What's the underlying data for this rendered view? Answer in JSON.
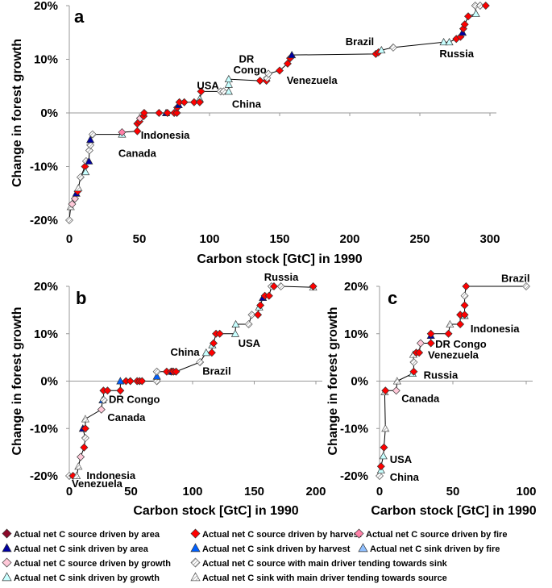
{
  "legend": [
    {
      "key": "area_source",
      "label": "Actual net C source driven by area",
      "shape": "diamond",
      "fill": "#8B0A2A"
    },
    {
      "key": "harvest_source",
      "label": "Actual net C source driven by harvest",
      "shape": "diamond",
      "fill": "#FF0000"
    },
    {
      "key": "fire_source",
      "label": "Actual net C source driven by fire",
      "shape": "diamond",
      "fill": "#FF80A8"
    },
    {
      "key": "area_sink",
      "label": "Actual net C sink driven by area",
      "shape": "triangle",
      "fill": "#0000A0"
    },
    {
      "key": "harvest_sink",
      "label": "Actual net C sink driven by harvest",
      "shape": "triangle",
      "fill": "#0060FF"
    },
    {
      "key": "fire_sink",
      "label": "Actual net C sink driven by fire",
      "shape": "triangle",
      "fill": "#90C0FF"
    },
    {
      "key": "growth_source",
      "label": "Actual net C source driven by growth",
      "shape": "diamond",
      "fill": "#FFC8D8"
    },
    {
      "key": "tend_sink",
      "label": "Actual net C source with main driver tending towards sink",
      "shape": "diamond",
      "fill": "#FFFFFF"
    },
    {
      "key": "growth_sink",
      "label": "Actual net C sink driven by growth",
      "shape": "triangle",
      "fill": "#C8FFFF"
    },
    {
      "key": "tend_source",
      "label": "Actual net C sink with main driver tending towards source",
      "shape": "triangle",
      "fill": "#FFFFFF"
    }
  ],
  "chart_data": [
    {
      "type": "scatter",
      "panel": "a",
      "xlabel": "Carbon stock [GtC] in 1990",
      "ylabel": "Change in forest growth",
      "xlim": [
        0,
        300
      ],
      "ylim": [
        -20,
        20
      ],
      "xticks": [
        "0",
        "50",
        "100",
        "150",
        "200",
        "250",
        "300"
      ],
      "yticks": [
        "-20%",
        "-10%",
        "0%",
        "10%",
        "20%"
      ],
      "connected": true,
      "points": [
        [
          0,
          -20,
          "tend_sink"
        ],
        [
          1,
          -17.5,
          "tend_source"
        ],
        [
          2,
          -17,
          "growth_source"
        ],
        [
          4,
          -16,
          "growth_source"
        ],
        [
          5,
          -15,
          "area_sink"
        ],
        [
          6,
          -14.6,
          "harvest_source"
        ],
        [
          6.5,
          -14,
          "tend_source"
        ],
        [
          8,
          -12,
          "tend_sink"
        ],
        [
          11.2,
          -10,
          "harvest_source"
        ],
        [
          11.6,
          -11,
          "growth_sink"
        ],
        [
          12,
          -9,
          "tend_sink"
        ],
        [
          14,
          -9,
          "area_sink"
        ],
        [
          14.3,
          -7,
          "tend_sink"
        ],
        [
          15,
          -6,
          "tend_sink"
        ],
        [
          15,
          -5,
          "area_sink"
        ],
        [
          16.6,
          -4,
          "tend_sink"
        ],
        [
          37.6,
          -4,
          "growth_sink"
        ],
        [
          37.6,
          -3.6,
          "fire_source"
        ],
        [
          48.5,
          -3.4,
          "harvest_source"
        ],
        [
          48.5,
          -2,
          "harvest_source"
        ],
        [
          50,
          -1.6,
          "harvest_source"
        ],
        [
          50.5,
          -1,
          "growth_source"
        ],
        [
          53,
          -0.6,
          "harvest_source"
        ],
        [
          53.4,
          0,
          "harvest_source"
        ],
        [
          64,
          0,
          "harvest_source"
        ],
        [
          69,
          0,
          "area_sink"
        ],
        [
          70,
          0,
          "harvest_source"
        ],
        [
          74.8,
          0,
          "harvest_source"
        ],
        [
          76.7,
          0,
          "harvest_source"
        ],
        [
          77,
          1,
          "harvest_source"
        ],
        [
          78,
          1.5,
          "area_sink"
        ],
        [
          78.5,
          2,
          "harvest_source"
        ],
        [
          82,
          2,
          "harvest_source"
        ],
        [
          89,
          2,
          "harvest_source"
        ],
        [
          93,
          2.6,
          "growth_sink"
        ],
        [
          93,
          2,
          "harvest_source"
        ],
        [
          94,
          4,
          "harvest_source"
        ],
        [
          108,
          4,
          "tend_sink"
        ],
        [
          110,
          4,
          "tend_sink"
        ],
        [
          113.7,
          4,
          "growth_sink"
        ],
        [
          113.7,
          5.3,
          "growth_sink"
        ],
        [
          113.7,
          6.3,
          "growth_sink"
        ],
        [
          136,
          6,
          "harvest_source"
        ],
        [
          140.6,
          6,
          "harvest_source"
        ],
        [
          141,
          6.5,
          "tend_sink"
        ],
        [
          142,
          7.3,
          "tend_sink"
        ],
        [
          150,
          7.9,
          "harvest_source"
        ],
        [
          155.7,
          9.2,
          "harvest_source"
        ],
        [
          157.5,
          10.2,
          "harvest_source"
        ],
        [
          158.7,
          10.8,
          "area_sink"
        ],
        [
          218.6,
          11,
          "harvest_source"
        ],
        [
          220.5,
          11.3,
          "harvest_source"
        ],
        [
          222.6,
          11.7,
          "growth_sink"
        ],
        [
          231,
          12.2,
          "tend_sink"
        ],
        [
          267,
          13.2,
          "growth_sink"
        ],
        [
          271,
          13.2,
          "growth_sink"
        ],
        [
          276,
          13.8,
          "harvest_source"
        ],
        [
          279,
          14.2,
          "harvest_source"
        ],
        [
          280.5,
          15,
          "area_sink"
        ],
        [
          281,
          15.7,
          "harvest_source"
        ],
        [
          282,
          16.5,
          "harvest_source"
        ],
        [
          284.5,
          18,
          "harvest_source"
        ],
        [
          290,
          18.5,
          "growth_sink"
        ],
        [
          289.5,
          20,
          "tend_sink"
        ],
        [
          293,
          20,
          "tend_sink"
        ],
        [
          297,
          20,
          "harvest_source"
        ]
      ],
      "annotations": [
        {
          "text": "Brazil",
          "x": 197,
          "y": 12.6
        },
        {
          "text": "Russia",
          "x": 264,
          "y": 10.4
        },
        {
          "text": "DR",
          "x": 121,
          "y": 9.4
        },
        {
          "text": "Congo",
          "x": 117,
          "y": 7.4
        },
        {
          "text": "USA",
          "x": 91,
          "y": 4.4
        },
        {
          "text": "China",
          "x": 116,
          "y": 1.0
        },
        {
          "text": "Venezuela",
          "x": 155,
          "y": 5.4
        },
        {
          "text": "Indonesia",
          "x": 51,
          "y": -4.8
        },
        {
          "text": "Canada",
          "x": 35,
          "y": -8.2
        }
      ]
    },
    {
      "type": "scatter",
      "panel": "b",
      "xlabel": "Carbon stock [GtC] in 1990",
      "ylabel": "Change in forest growth",
      "xlim": [
        0,
        200
      ],
      "ylim": [
        -20,
        20
      ],
      "xticks": [
        "0",
        "50",
        "100",
        "150",
        "200"
      ],
      "yticks": [
        "-20%",
        "-10%",
        "0%",
        "10%",
        "20%"
      ],
      "connected": true,
      "points": [
        [
          0,
          -20,
          "tend_sink"
        ],
        [
          3,
          -20,
          "harvest_source"
        ],
        [
          6,
          -20,
          "tend_source"
        ],
        [
          7.4,
          -18,
          "tend_source"
        ],
        [
          9.2,
          -16,
          "growth_source"
        ],
        [
          12,
          -14,
          "harvest_source"
        ],
        [
          13,
          -12,
          "tend_sink"
        ],
        [
          11,
          -10,
          "area_sink"
        ],
        [
          13,
          -10,
          "harvest_source"
        ],
        [
          13,
          -8,
          "tend_source"
        ],
        [
          26,
          -6,
          "growth_source"
        ],
        [
          27,
          -4,
          "harvest_sink"
        ],
        [
          28,
          -4,
          "tend_sink"
        ],
        [
          27.7,
          -2,
          "harvest_source"
        ],
        [
          31,
          -2,
          "harvest_source"
        ],
        [
          41.4,
          -2,
          "harvest_source"
        ],
        [
          41.4,
          0,
          "harvest_sink"
        ],
        [
          46,
          0,
          "harvest_source"
        ],
        [
          49.5,
          0,
          "harvest_source"
        ],
        [
          55,
          0,
          "harvest_source"
        ],
        [
          57,
          0,
          "harvest_source"
        ],
        [
          59,
          0,
          "harvest_source"
        ],
        [
          71,
          0,
          "tend_sink"
        ],
        [
          71,
          1,
          "harvest_sink"
        ],
        [
          71,
          2,
          "tend_sink"
        ],
        [
          79,
          2,
          "harvest_source"
        ],
        [
          82.6,
          2,
          "harvest_source"
        ],
        [
          83.5,
          2,
          "area_sink"
        ],
        [
          84.4,
          2,
          "harvest_source"
        ],
        [
          86.6,
          2,
          "harvest_source"
        ],
        [
          106,
          4,
          "tend_sink"
        ],
        [
          111,
          6,
          "growth_sink"
        ],
        [
          115.6,
          6,
          "harvest_source"
        ],
        [
          116,
          7.6,
          "growth_sink"
        ],
        [
          117,
          8,
          "harvest_source"
        ],
        [
          119,
          10,
          "harvest_source"
        ],
        [
          122,
          10,
          "harvest_source"
        ],
        [
          134.6,
          10,
          "growth_sink"
        ],
        [
          135,
          12,
          "growth_sink"
        ],
        [
          145.5,
          12,
          "tend_sink"
        ],
        [
          148,
          14,
          "tend_sink"
        ],
        [
          153,
          14,
          "harvest_source"
        ],
        [
          154,
          15.6,
          "growth_sink"
        ],
        [
          155,
          16,
          "harvest_source"
        ],
        [
          157,
          17.6,
          "area_sink"
        ],
        [
          158.6,
          18,
          "harvest_source"
        ],
        [
          162,
          18,
          "harvest_source"
        ],
        [
          164,
          20,
          "tend_sink"
        ],
        [
          166,
          20,
          "harvest_source"
        ],
        [
          171.6,
          20,
          "tend_sink"
        ],
        [
          197.8,
          19.8,
          "tend_source"
        ],
        [
          197.8,
          20,
          "harvest_source"
        ]
      ],
      "annotations": [
        {
          "text": "Russia",
          "x": 158,
          "y": 21.2
        },
        {
          "text": "USA",
          "x": 137,
          "y": 7.2
        },
        {
          "text": "China",
          "x": 82,
          "y": 5.4
        },
        {
          "text": "Brazil",
          "x": 108,
          "y": 1.4
        },
        {
          "text": "DR Congo",
          "x": 32,
          "y": -4.6
        },
        {
          "text": "Canada",
          "x": 31,
          "y": -8.4
        },
        {
          "text": "Indonesia",
          "x": 14,
          "y": -20.7
        },
        {
          "text": "Venezuela",
          "x": 2,
          "y": -22.4
        }
      ]
    },
    {
      "type": "scatter",
      "panel": "c",
      "xlabel": "Carbon stock [GtC] in 1990",
      "ylabel": "Change in forest growth",
      "xlim": [
        0,
        100
      ],
      "ylim": [
        -20,
        20
      ],
      "xticks": [
        "0",
        "50",
        "100"
      ],
      "yticks": [
        "-20%",
        "-10%",
        "0%",
        "10%",
        "20%"
      ],
      "connected": true,
      "points": [
        [
          0,
          -20,
          "tend_sink"
        ],
        [
          1,
          -18.8,
          "growth_sink"
        ],
        [
          1,
          -18,
          "harvest_source"
        ],
        [
          2.6,
          -15.8,
          "growth_sink"
        ],
        [
          3,
          -14,
          "harvest_source"
        ],
        [
          4,
          -10,
          "tend_source"
        ],
        [
          3.5,
          -2.3,
          "tend_source"
        ],
        [
          4,
          -2,
          "harvest_source"
        ],
        [
          11.4,
          -2,
          "growth_source"
        ],
        [
          12,
          0,
          "tend_source"
        ],
        [
          22.5,
          1.6,
          "growth_sink"
        ],
        [
          23.3,
          2,
          "harvest_source"
        ],
        [
          23.3,
          4,
          "tend_sink"
        ],
        [
          23,
          5.6,
          "tend_source"
        ],
        [
          25,
          6,
          "harvest_source"
        ],
        [
          27,
          6,
          "harvest_source"
        ],
        [
          28,
          8,
          "growth_source"
        ],
        [
          35,
          8,
          "harvest_source"
        ],
        [
          35,
          9.6,
          "area_sink"
        ],
        [
          35,
          10,
          "harvest_source"
        ],
        [
          47,
          10,
          "harvest_source"
        ],
        [
          48,
          12,
          "tend_source"
        ],
        [
          55,
          12,
          "harvest_source"
        ],
        [
          55,
          14,
          "harvest_source"
        ],
        [
          58,
          13.8,
          "growth_sink"
        ],
        [
          58,
          14,
          "harvest_source"
        ],
        [
          58,
          16,
          "harvest_source"
        ],
        [
          58,
          18,
          "tend_sink"
        ],
        [
          59,
          20,
          "harvest_source"
        ],
        [
          100,
          20,
          "tend_sink"
        ]
      ],
      "annotations": [
        {
          "text": "Brazil",
          "x": 83,
          "y": 20.9
        },
        {
          "text": "Indonesia",
          "x": 62,
          "y": 10.3
        },
        {
          "text": "DR Congo",
          "x": 38,
          "y": 7.1
        },
        {
          "text": "Venezuela",
          "x": 33,
          "y": 4.8
        },
        {
          "text": "Russia",
          "x": 30,
          "y": 0.5
        },
        {
          "text": "Canada",
          "x": 15,
          "y": -4.4
        },
        {
          "text": "USA",
          "x": 7,
          "y": -17.3
        },
        {
          "text": "China",
          "x": 7,
          "y": -21.0
        }
      ]
    }
  ]
}
